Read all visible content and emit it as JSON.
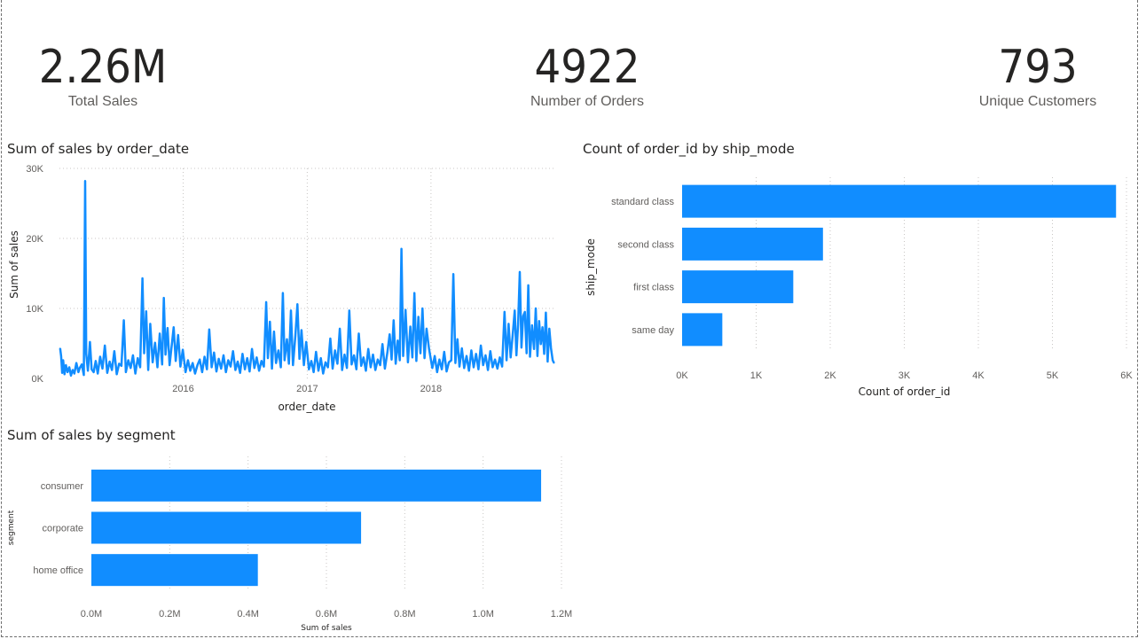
{
  "kpis": {
    "total_sales": {
      "value": "2.26M",
      "label": "Total Sales"
    },
    "number_of_orders": {
      "value": "4922",
      "label": "Number of Orders"
    },
    "unique_customers": {
      "value": "793",
      "label": "Unique Customers"
    }
  },
  "colors": {
    "bar": "#118DFF",
    "grid": "#c8c6c4",
    "text": "#252423",
    "muted": "#605e5c"
  },
  "chart_data": [
    {
      "type": "line",
      "title": "Sum of sales by order_date",
      "xlabel": "order_date",
      "ylabel": "Sum of sales",
      "x_tick_labels": [
        "2016",
        "2017",
        "2018"
      ],
      "y_tick_labels": [
        "0K",
        "10K",
        "20K",
        "30K"
      ],
      "ylim": [
        0,
        30000
      ],
      "xlim": [
        "2015-01-01",
        "2018-12-31"
      ],
      "grid": true,
      "series": [
        {
          "points": [
            [
              "2015-01-03",
              4300
            ],
            [
              "2015-01-06",
              3200
            ],
            [
              "2015-01-09",
              800
            ],
            [
              "2015-01-12",
              2600
            ],
            [
              "2015-01-16",
              600
            ],
            [
              "2015-01-20",
              1900
            ],
            [
              "2015-01-25",
              900
            ],
            [
              "2015-01-30",
              1600
            ],
            [
              "2015-02-04",
              400
            ],
            [
              "2015-02-09",
              1200
            ],
            [
              "2015-02-14",
              700
            ],
            [
              "2015-02-20",
              2200
            ],
            [
              "2015-02-26",
              900
            ],
            [
              "2015-03-02",
              1500
            ],
            [
              "2015-03-08",
              2000
            ],
            [
              "2015-03-14",
              500
            ],
            [
              "2015-03-18",
              28200
            ],
            [
              "2015-03-21",
              3500
            ],
            [
              "2015-03-26",
              1100
            ],
            [
              "2015-04-01",
              5200
            ],
            [
              "2015-04-06",
              1300
            ],
            [
              "2015-04-12",
              900
            ],
            [
              "2015-04-18",
              2500
            ],
            [
              "2015-04-24",
              700
            ],
            [
              "2015-05-01",
              3100
            ],
            [
              "2015-05-08",
              1400
            ],
            [
              "2015-05-15",
              4700
            ],
            [
              "2015-05-22",
              800
            ],
            [
              "2015-05-29",
              2400
            ],
            [
              "2015-06-05",
              1200
            ],
            [
              "2015-06-12",
              3900
            ],
            [
              "2015-06-19",
              600
            ],
            [
              "2015-06-26",
              2100
            ],
            [
              "2015-07-03",
              1800
            ],
            [
              "2015-07-10",
              8300
            ],
            [
              "2015-07-16",
              900
            ],
            [
              "2015-07-23",
              2600
            ],
            [
              "2015-07-30",
              1500
            ],
            [
              "2015-08-06",
              3300
            ],
            [
              "2015-08-13",
              700
            ],
            [
              "2015-08-20",
              2900
            ],
            [
              "2015-08-27",
              1600
            ],
            [
              "2015-09-03",
              14300
            ],
            [
              "2015-09-08",
              3600
            ],
            [
              "2015-09-14",
              9600
            ],
            [
              "2015-09-20",
              1200
            ],
            [
              "2015-09-26",
              7800
            ],
            [
              "2015-10-03",
              2300
            ],
            [
              "2015-10-10",
              5100
            ],
            [
              "2015-10-17",
              1600
            ],
            [
              "2015-10-24",
              6400
            ],
            [
              "2015-10-31",
              2000
            ],
            [
              "2015-11-05",
              11500
            ],
            [
              "2015-11-10",
              3400
            ],
            [
              "2015-11-16",
              7200
            ],
            [
              "2015-11-22",
              1900
            ],
            [
              "2015-11-28",
              4600
            ],
            [
              "2015-12-04",
              7300
            ],
            [
              "2015-12-10",
              2500
            ],
            [
              "2015-12-17",
              6200
            ],
            [
              "2015-12-24",
              1700
            ],
            [
              "2015-12-31",
              4100
            ],
            [
              "2016-01-08",
              900
            ],
            [
              "2016-01-15",
              2600
            ],
            [
              "2016-01-22",
              1100
            ],
            [
              "2016-01-29",
              2200
            ],
            [
              "2016-02-05",
              700
            ],
            [
              "2016-02-12",
              1900
            ],
            [
              "2016-02-19",
              2700
            ],
            [
              "2016-02-26",
              900
            ],
            [
              "2016-03-04",
              3100
            ],
            [
              "2016-03-11",
              1300
            ],
            [
              "2016-03-18",
              7000
            ],
            [
              "2016-03-25",
              1600
            ],
            [
              "2016-04-01",
              3700
            ],
            [
              "2016-04-08",
              1000
            ],
            [
              "2016-04-15",
              2800
            ],
            [
              "2016-04-22",
              1400
            ],
            [
              "2016-04-29",
              3300
            ],
            [
              "2016-05-06",
              900
            ],
            [
              "2016-05-13",
              2600
            ],
            [
              "2016-05-20",
              1700
            ],
            [
              "2016-05-27",
              3900
            ],
            [
              "2016-06-03",
              1200
            ],
            [
              "2016-06-10",
              2400
            ],
            [
              "2016-06-17",
              800
            ],
            [
              "2016-06-24",
              3500
            ],
            [
              "2016-07-01",
              1300
            ],
            [
              "2016-07-08",
              2900
            ],
            [
              "2016-07-15",
              1000
            ],
            [
              "2016-07-22",
              4200
            ],
            [
              "2016-07-29",
              1500
            ],
            [
              "2016-08-05",
              3000
            ],
            [
              "2016-08-12",
              1100
            ],
            [
              "2016-08-19",
              2500
            ],
            [
              "2016-08-26",
              1700
            ],
            [
              "2016-09-02",
              10900
            ],
            [
              "2016-09-07",
              2900
            ],
            [
              "2016-09-13",
              8100
            ],
            [
              "2016-09-19",
              1400
            ],
            [
              "2016-09-25",
              6700
            ],
            [
              "2016-10-01",
              2200
            ],
            [
              "2016-10-08",
              4000
            ],
            [
              "2016-10-15",
              1600
            ],
            [
              "2016-10-21",
              12200
            ],
            [
              "2016-10-26",
              2600
            ],
            [
              "2016-11-02",
              5600
            ],
            [
              "2016-11-08",
              2100
            ],
            [
              "2016-11-14",
              9700
            ],
            [
              "2016-11-20",
              1900
            ],
            [
              "2016-11-27",
              6100
            ],
            [
              "2016-12-03",
              10600
            ],
            [
              "2016-12-09",
              2800
            ],
            [
              "2016-12-15",
              6900
            ],
            [
              "2016-12-22",
              1900
            ],
            [
              "2016-12-29",
              5200
            ],
            [
              "2017-01-06",
              1300
            ],
            [
              "2017-01-13",
              2500
            ],
            [
              "2017-01-20",
              900
            ],
            [
              "2017-01-27",
              3800
            ],
            [
              "2017-02-03",
              1100
            ],
            [
              "2017-02-10",
              2900
            ],
            [
              "2017-02-17",
              700
            ],
            [
              "2017-02-24",
              2300
            ],
            [
              "2017-03-03",
              1600
            ],
            [
              "2017-03-10",
              5700
            ],
            [
              "2017-03-17",
              1400
            ],
            [
              "2017-03-24",
              4000
            ],
            [
              "2017-03-31",
              2100
            ],
            [
              "2017-04-07",
              7100
            ],
            [
              "2017-04-14",
              1200
            ],
            [
              "2017-04-21",
              3400
            ],
            [
              "2017-04-28",
              1500
            ],
            [
              "2017-05-05",
              9700
            ],
            [
              "2017-05-12",
              2000
            ],
            [
              "2017-05-19",
              3300
            ],
            [
              "2017-05-26",
              1300
            ],
            [
              "2017-06-02",
              6400
            ],
            [
              "2017-06-09",
              1800
            ],
            [
              "2017-06-16",
              3000
            ],
            [
              "2017-06-23",
              1100
            ],
            [
              "2017-06-30",
              4200
            ],
            [
              "2017-07-07",
              1600
            ],
            [
              "2017-07-14",
              3400
            ],
            [
              "2017-07-21",
              1200
            ],
            [
              "2017-07-28",
              2700
            ],
            [
              "2017-08-04",
              1900
            ],
            [
              "2017-08-11",
              4900
            ],
            [
              "2017-08-18",
              1400
            ],
            [
              "2017-08-25",
              3600
            ],
            [
              "2017-09-01",
              6300
            ],
            [
              "2017-09-07",
              2700
            ],
            [
              "2017-09-13",
              8300
            ],
            [
              "2017-09-19",
              2100
            ],
            [
              "2017-09-25",
              5400
            ],
            [
              "2017-10-01",
              2600
            ],
            [
              "2017-10-06",
              18500
            ],
            [
              "2017-10-11",
              3200
            ],
            [
              "2017-10-18",
              9800
            ],
            [
              "2017-10-25",
              2300
            ],
            [
              "2017-11-01",
              7400
            ],
            [
              "2017-11-07",
              3000
            ],
            [
              "2017-11-13",
              12200
            ],
            [
              "2017-11-19",
              2500
            ],
            [
              "2017-11-25",
              8800
            ],
            [
              "2017-12-01",
              3600
            ],
            [
              "2017-12-07",
              10000
            ],
            [
              "2017-12-13",
              2900
            ],
            [
              "2017-12-19",
              7100
            ],
            [
              "2017-12-26",
              4300
            ],
            [
              "2018-01-05",
              1500
            ],
            [
              "2018-01-12",
              3200
            ],
            [
              "2018-01-19",
              900
            ],
            [
              "2018-01-26",
              2700
            ],
            [
              "2018-02-02",
              1300
            ],
            [
              "2018-02-09",
              3800
            ],
            [
              "2018-02-16",
              1000
            ],
            [
              "2018-02-23",
              2300
            ],
            [
              "2018-03-02",
              2600
            ],
            [
              "2018-03-08",
              14900
            ],
            [
              "2018-03-14",
              2200
            ],
            [
              "2018-03-20",
              5600
            ],
            [
              "2018-03-26",
              1700
            ],
            [
              "2018-04-02",
              4300
            ],
            [
              "2018-04-09",
              1500
            ],
            [
              "2018-04-16",
              3200
            ],
            [
              "2018-04-23",
              1100
            ],
            [
              "2018-04-30",
              4000
            ],
            [
              "2018-05-07",
              1600
            ],
            [
              "2018-05-14",
              3500
            ],
            [
              "2018-05-21",
              1300
            ],
            [
              "2018-05-28",
              4700
            ],
            [
              "2018-06-04",
              1900
            ],
            [
              "2018-06-11",
              3300
            ],
            [
              "2018-06-18",
              1200
            ],
            [
              "2018-06-25",
              3900
            ],
            [
              "2018-07-02",
              1600
            ],
            [
              "2018-07-09",
              2700
            ],
            [
              "2018-07-16",
              1400
            ],
            [
              "2018-07-23",
              3000
            ],
            [
              "2018-07-30",
              1700
            ],
            [
              "2018-08-06",
              9500
            ],
            [
              "2018-08-12",
              2600
            ],
            [
              "2018-08-18",
              7800
            ],
            [
              "2018-08-24",
              3000
            ],
            [
              "2018-08-30",
              6200
            ],
            [
              "2018-09-05",
              9700
            ],
            [
              "2018-09-10",
              3300
            ],
            [
              "2018-09-15",
              7700
            ],
            [
              "2018-09-20",
              15200
            ],
            [
              "2018-09-25",
              4400
            ],
            [
              "2018-09-30",
              8900
            ],
            [
              "2018-10-05",
              9500
            ],
            [
              "2018-10-10",
              3600
            ],
            [
              "2018-10-15",
              13300
            ],
            [
              "2018-10-20",
              3100
            ],
            [
              "2018-10-26",
              7600
            ],
            [
              "2018-11-01",
              4200
            ],
            [
              "2018-11-06",
              10000
            ],
            [
              "2018-11-11",
              3200
            ],
            [
              "2018-11-16",
              8200
            ],
            [
              "2018-11-21",
              4900
            ],
            [
              "2018-11-26",
              7300
            ],
            [
              "2018-12-01",
              3500
            ],
            [
              "2018-12-06",
              9400
            ],
            [
              "2018-12-11",
              2400
            ],
            [
              "2018-12-16",
              7100
            ],
            [
              "2018-12-21",
              4300
            ],
            [
              "2018-12-26",
              2600
            ],
            [
              "2018-12-30",
              2200
            ]
          ]
        }
      ]
    },
    {
      "type": "bar",
      "orientation": "horizontal",
      "title": "Count of order_id by ship_mode",
      "xlabel": "Count of order_id",
      "ylabel": "ship_mode",
      "categories": [
        "standard class",
        "second class",
        "first class",
        "same day"
      ],
      "values": [
        5859,
        1902,
        1501,
        543
      ],
      "x_tick_labels": [
        "0K",
        "1K",
        "2K",
        "3K",
        "4K",
        "5K",
        "6K"
      ],
      "xlim": [
        0,
        6000
      ],
      "grid": true
    },
    {
      "type": "bar",
      "orientation": "horizontal",
      "title": "Sum of sales by segment",
      "xlabel": "Sum of sales",
      "ylabel": "segment",
      "categories": [
        "consumer",
        "corporate",
        "home office"
      ],
      "values": [
        1148061,
        688494,
        424982
      ],
      "x_tick_labels": [
        "0.0M",
        "0.2M",
        "0.4M",
        "0.6M",
        "0.8M",
        "1.0M",
        "1.2M"
      ],
      "xlim": [
        0,
        1200000
      ],
      "grid": true
    }
  ]
}
